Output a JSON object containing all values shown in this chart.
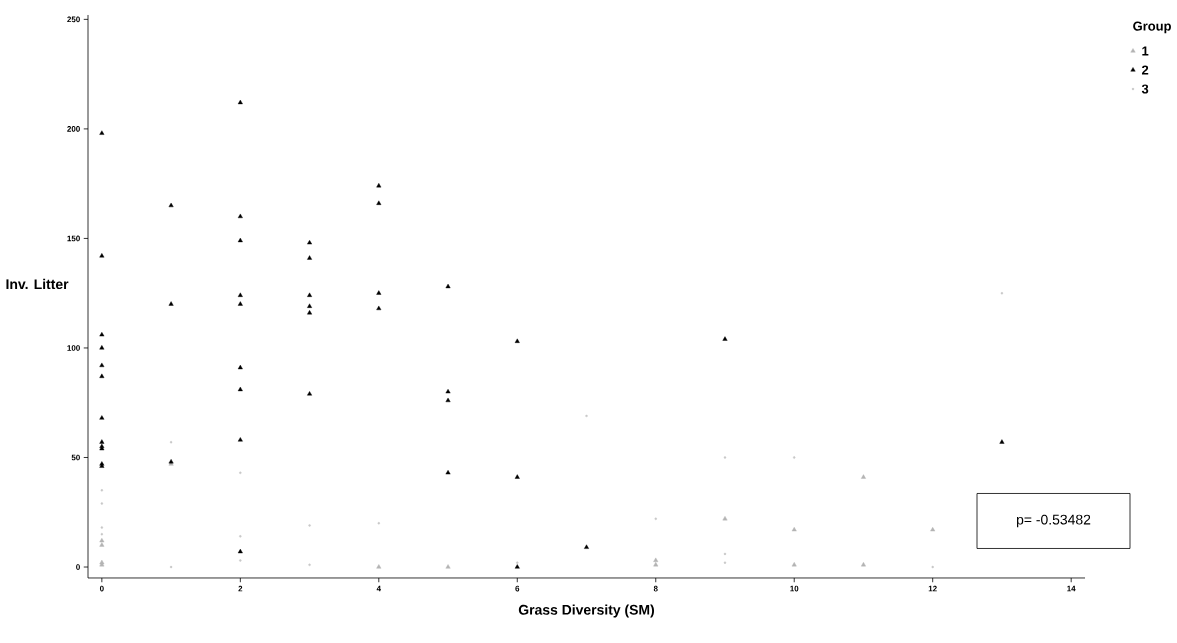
{
  "chart_data": {
    "type": "scatter",
    "xlabel": "Grass Diversity (SM)",
    "ylabel": "Inv. Litter",
    "legend_title": "Group",
    "legend": "top right",
    "xlim": [
      -0.2,
      14.2
    ],
    "ylim": [
      -5,
      252
    ],
    "xticks": [
      0,
      2,
      4,
      6,
      8,
      10,
      12,
      14
    ],
    "yticks": [
      0,
      50,
      100,
      150,
      200,
      250
    ],
    "grid": false,
    "annotations": [
      "p= -0.53482"
    ],
    "series": [
      {
        "name": "1",
        "color": "#b4b4b4",
        "marker": "triangle",
        "x": [
          0,
          0,
          0,
          0,
          1,
          4,
          5,
          8,
          8,
          9,
          10,
          10,
          11,
          11,
          12
        ],
        "values": [
          12,
          10,
          2,
          1,
          47,
          0,
          0,
          3,
          1,
          22,
          17,
          1,
          41,
          1,
          17
        ]
      },
      {
        "name": "2",
        "color": "#000000",
        "marker": "triangle",
        "x": [
          0,
          0,
          0,
          0,
          0,
          0,
          0,
          0,
          0,
          0,
          0,
          0,
          1,
          1,
          1,
          2,
          2,
          2,
          2,
          2,
          2,
          2,
          2,
          2,
          3,
          3,
          3,
          3,
          3,
          3,
          4,
          4,
          4,
          4,
          5,
          5,
          5,
          5,
          6,
          6,
          6,
          7,
          9,
          13
        ],
        "values": [
          198,
          142,
          106,
          100,
          92,
          87,
          68,
          57,
          55,
          54,
          47,
          46,
          165,
          120,
          48,
          212,
          160,
          149,
          124,
          120,
          91,
          81,
          58,
          7,
          148,
          141,
          124,
          119,
          116,
          79,
          174,
          166,
          125,
          118,
          128,
          80,
          76,
          43,
          103,
          41,
          0,
          9,
          104,
          57
        ]
      },
      {
        "name": "3",
        "color": "#c8c8c8",
        "marker": "circle",
        "x": [
          0,
          0,
          0,
          0,
          1,
          1,
          2,
          2,
          2,
          3,
          3,
          4,
          6,
          7,
          8,
          9,
          9,
          9,
          10,
          12,
          13
        ],
        "values": [
          35,
          29,
          18,
          15,
          57,
          0,
          43,
          14,
          3,
          19,
          1,
          20,
          2,
          69,
          22,
          50,
          6,
          2,
          50,
          0,
          125
        ]
      }
    ]
  }
}
